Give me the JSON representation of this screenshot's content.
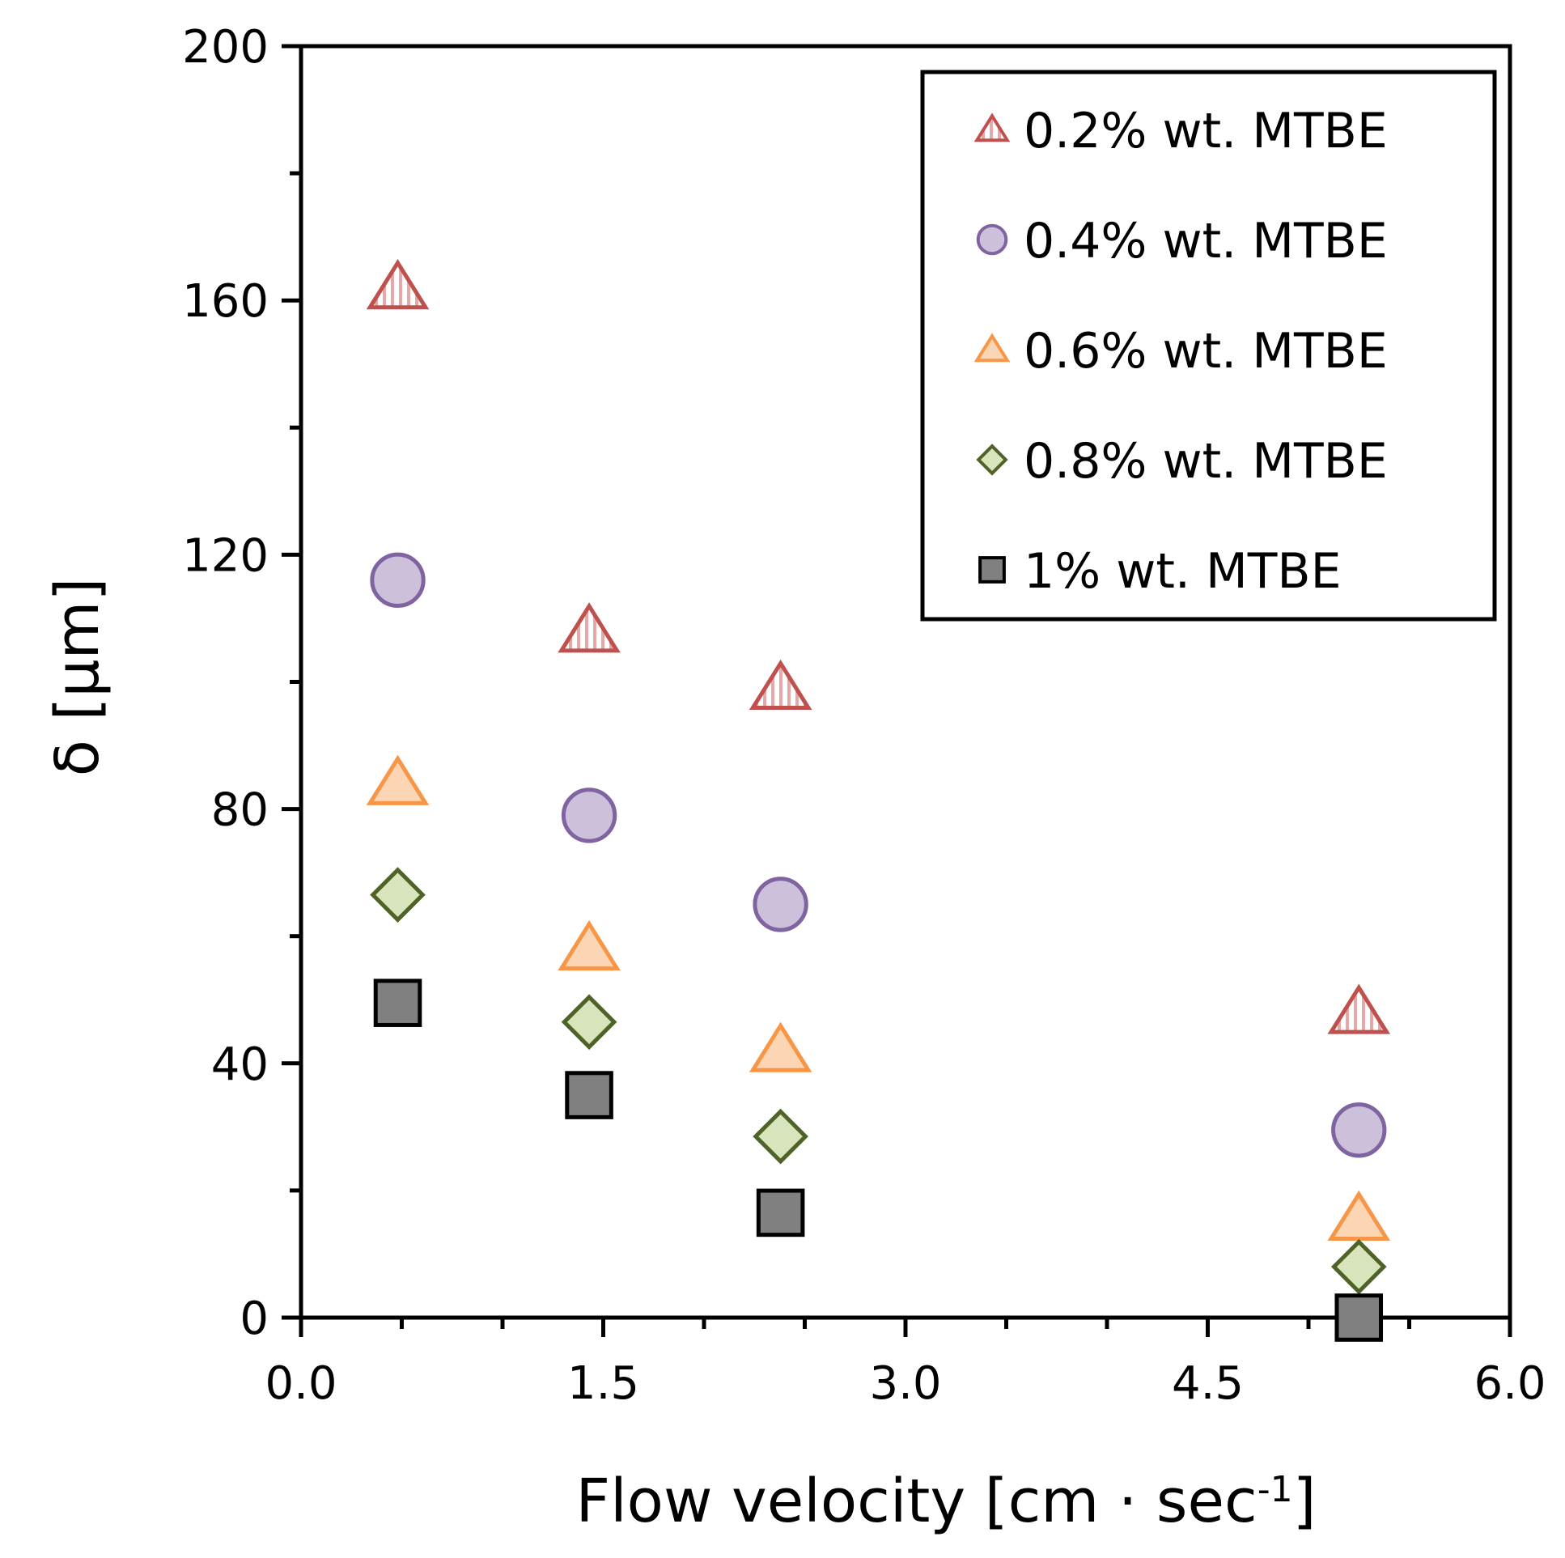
{
  "chart_data": {
    "type": "scatter",
    "xlabel": "Flow velocity [cm · sec",
    "xlabel_sup": "-1",
    "xlabel_end": "]",
    "ylabel": "δ [µm]",
    "xlim": [
      0,
      6
    ],
    "ylim": [
      0,
      200
    ],
    "x_ticks": [
      "0.0",
      "1.5",
      "3.0",
      "4.5",
      "6.0"
    ],
    "y_ticks": [
      "0",
      "40",
      "80",
      "120",
      "160",
      "200"
    ],
    "grid": false,
    "legend_position": "top-right",
    "series": [
      {
        "name": "0.2% wt. MTBE",
        "marker": "triangle-hatched",
        "stroke": "#c0504d",
        "fill": "#f2dcdb",
        "x": [
          0.48,
          1.43,
          2.38,
          5.25
        ],
        "y": [
          162,
          108,
          99,
          48
        ]
      },
      {
        "name": "0.4% wt. MTBE",
        "marker": "circle",
        "stroke": "#8064a2",
        "fill": "#ccc0da",
        "x": [
          0.48,
          1.43,
          2.38,
          5.25
        ],
        "y": [
          116,
          79,
          65,
          29.5
        ]
      },
      {
        "name": "0.6% wt. MTBE",
        "marker": "triangle",
        "stroke": "#f79646",
        "fill": "#fcd5b4",
        "x": [
          0.48,
          1.43,
          2.38,
          5.25
        ],
        "y": [
          84,
          58,
          42,
          15.5
        ]
      },
      {
        "name": "0.8% wt. MTBE",
        "marker": "diamond",
        "stroke": "#4f6228",
        "fill": "#d7e4bc",
        "x": [
          0.48,
          1.43,
          2.38,
          5.25
        ],
        "y": [
          66.5,
          46.5,
          28.5,
          8
        ]
      },
      {
        "name": "1% wt. MTBE",
        "marker": "square",
        "stroke": "#000000",
        "fill": "#808080",
        "x": [
          0.48,
          1.43,
          2.38,
          5.25
        ],
        "y": [
          49.5,
          35,
          16.5,
          0
        ]
      }
    ]
  }
}
